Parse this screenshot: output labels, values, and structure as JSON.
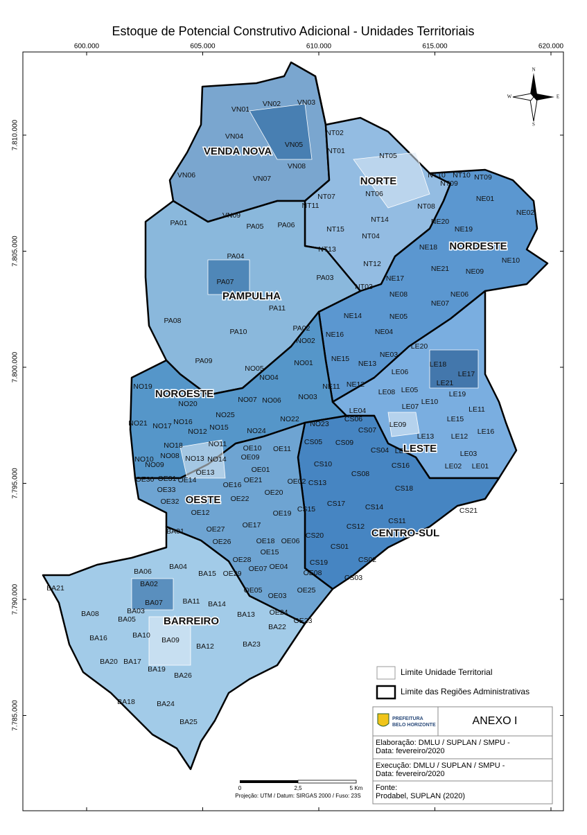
{
  "title": "Estoque de Potencial Construtivo Adicional - Unidades Territoriais",
  "map": {
    "xticks": [
      {
        "value": 600000,
        "label": "600.000"
      },
      {
        "value": 605000,
        "label": "605.000"
      },
      {
        "value": 610000,
        "label": "610.000"
      },
      {
        "value": 615000,
        "label": "615.000"
      },
      {
        "value": 620000,
        "label": "620.000"
      }
    ],
    "yticks": [
      {
        "value": 7810000,
        "label": "7.810.000"
      },
      {
        "value": 7805000,
        "label": "7.805.000"
      },
      {
        "value": 7800000,
        "label": "7.800.000"
      },
      {
        "value": 7795000,
        "label": "7.795.000"
      },
      {
        "value": 7790000,
        "label": "7.790.000"
      },
      {
        "value": 7785000,
        "label": "7.785.000"
      }
    ],
    "regions": [
      "VENDA NOVA",
      "NORTE",
      "NORDESTE",
      "PAMPULHA",
      "NOROESTE",
      "LESTE",
      "OESTE",
      "CENTRO-SUL",
      "BARREIRO"
    ],
    "units": [
      "VN01",
      "VN02",
      "VN03",
      "VN04",
      "VN05",
      "VN06",
      "VN07",
      "VN08",
      "VN09",
      "NT01",
      "NT02",
      "NT05",
      "NT10",
      "NT09",
      "NT10",
      "NT09",
      "NT07",
      "NT06",
      "NT11",
      "NT08",
      "NT14",
      "NT15",
      "NT04",
      "NT13",
      "NT12",
      "NT03",
      "NE01",
      "NE02",
      "NE20",
      "NE19",
      "NE18",
      "NE21",
      "NE10",
      "NE09",
      "NE17",
      "NE08",
      "NE06",
      "NE07",
      "NE05",
      "NE14",
      "NE04",
      "NE16",
      "NE03",
      "NE15",
      "NE13",
      "NE12",
      "NE11",
      "PA05",
      "PA06",
      "PA01",
      "PA04",
      "PA07",
      "PA03",
      "PA11",
      "PA08",
      "PA02",
      "PA10",
      "PA09",
      "NO02",
      "NO01",
      "NO05",
      "NO04",
      "NO19",
      "NO20",
      "NO07",
      "NO06",
      "NO03",
      "NO25",
      "NO21",
      "NO17",
      "NO16",
      "NO12",
      "NO15",
      "NO22",
      "NO24",
      "NO23",
      "NO18",
      "NO11",
      "NO10",
      "NO08",
      "NO09",
      "NO13",
      "NO14",
      "CS06",
      "CS05",
      "CS09",
      "CS07",
      "CS04",
      "CS10",
      "CS08",
      "CS16",
      "CS13",
      "CS18",
      "CS17",
      "CS15",
      "CS14",
      "CS21",
      "CS12",
      "CS11",
      "CS20",
      "CS01",
      "CS02",
      "CS19",
      "CS03",
      "LE20",
      "LE18",
      "LE17",
      "LE06",
      "LE21",
      "LE19",
      "LE05",
      "LE08",
      "LE07",
      "LE10",
      "LE04",
      "LE11",
      "LE09",
      "LE15",
      "LE16",
      "LE13",
      "LE12",
      "LE14",
      "LE03",
      "LE02",
      "LE01",
      "OE10",
      "OE11",
      "OE09",
      "OE01",
      "OE02",
      "OE13",
      "OE14",
      "OE31",
      "OE30",
      "OE16",
      "OE21",
      "OE33",
      "OE32",
      "OE22",
      "OE20",
      "OE12",
      "OE19",
      "OE17",
      "OE27",
      "OE26",
      "OE18",
      "OE06",
      "OE15",
      "OE28",
      "OE07",
      "OE04",
      "OE29",
      "OE08",
      "OE05",
      "OE03",
      "OE25",
      "OE24",
      "OE23",
      "BA01",
      "BA06",
      "BA04",
      "BA15",
      "BA02",
      "BA11",
      "BA14",
      "BA03",
      "BA07",
      "BA08",
      "BA05",
      "BA21",
      "BA13",
      "BA10",
      "BA09",
      "BA22",
      "BA16",
      "BA12",
      "BA23",
      "BA20",
      "BA17",
      "BA19",
      "BA26",
      "BA18",
      "BA24",
      "BA25"
    ]
  },
  "compass": {
    "n": "N",
    "s": "S",
    "e": "E",
    "w": "W"
  },
  "scale": {
    "labels": [
      "0",
      "2,5",
      "5 Km"
    ],
    "projection": "Projeção: UTM / Datum: SIRGAS 2000 / Fuso: 23S"
  },
  "legend": {
    "items": [
      "Limite Unidade Territorial",
      "Limite das Regiões Administrativas"
    ]
  },
  "info": {
    "logo": [
      "PREFEITURA",
      "BELO HORIZONTE"
    ],
    "annex": "ANEXO I",
    "rows": [
      [
        "Elaboração: DMLU / SUPLAN / SMPU -",
        "Data: fevereiro/2020"
      ],
      [
        "Execução: DMLU / SUPLAN / SMPU -",
        "Data: fevereiro/2020"
      ],
      [
        "Fonte:",
        "Prodabel, SUPLAN (2020)"
      ]
    ]
  }
}
